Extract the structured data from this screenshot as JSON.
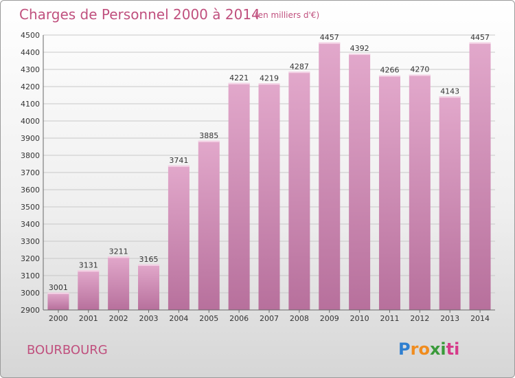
{
  "chart_data": {
    "type": "bar",
    "title": "Charges de Personnel 2000 à 2014",
    "subtitle": "(en milliers d'€)",
    "categories": [
      "2000",
      "2001",
      "2002",
      "2003",
      "2004",
      "2005",
      "2006",
      "2007",
      "2008",
      "2009",
      "2010",
      "2011",
      "2012",
      "2013",
      "2014"
    ],
    "values": [
      3001,
      3131,
      3211,
      3165,
      3741,
      3885,
      4221,
      4219,
      4287,
      4457,
      4392,
      4266,
      4270,
      4143,
      4457
    ],
    "ylim": [
      2900,
      4500
    ],
    "yticks": [
      2900,
      3000,
      3100,
      3200,
      3300,
      3400,
      3500,
      3600,
      3700,
      3800,
      3900,
      4000,
      4100,
      4200,
      4300,
      4400,
      4500
    ],
    "grid": true,
    "bar_color": "#d38bb4"
  },
  "town": "BOURBOURG",
  "logo": {
    "letters": [
      "P",
      "r",
      "o",
      "x",
      "i",
      "t",
      "i"
    ],
    "colors": [
      "#2f7fd0",
      "#f08c1e",
      "#f08c1e",
      "#3a9a3a",
      "#3a9a3a",
      "#d63a8a",
      "#d63a8a"
    ]
  }
}
